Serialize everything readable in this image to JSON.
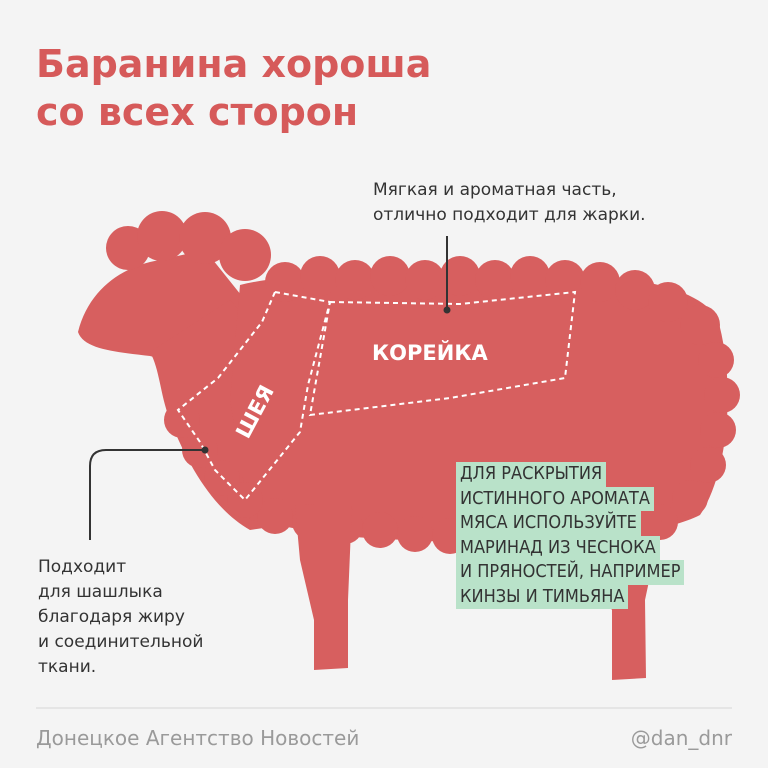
{
  "header": {
    "title": [
      "Баранина хороша",
      "со всех сторон"
    ]
  },
  "callouts": {
    "loin_note": [
      "Мягкая и ароматная часть,",
      "отлично подходит для жарки."
    ],
    "neck_note": [
      "Подходит",
      "для шашлыка",
      "благодаря жиру",
      "и соединительной",
      "ткани."
    ]
  },
  "cuts": {
    "loin": "КОРЕЙКА",
    "neck": "ШЕЯ"
  },
  "tip": [
    "ДЛЯ РАСКРЫТИЯ",
    "ИСТИННОГО АРОМАТА",
    "МЯСА ИСПОЛЬЗУЙТЕ",
    "МАРИНАД ИЗ ЧЕСНОКА",
    "И ПРЯНОСТЕЙ, НАПРИМЕР",
    "КИНЗЫ И ТИМЬЯНА"
  ],
  "footer": {
    "source": "Донецкое Агентство Новостей",
    "handle": "@dan_dnr"
  }
}
